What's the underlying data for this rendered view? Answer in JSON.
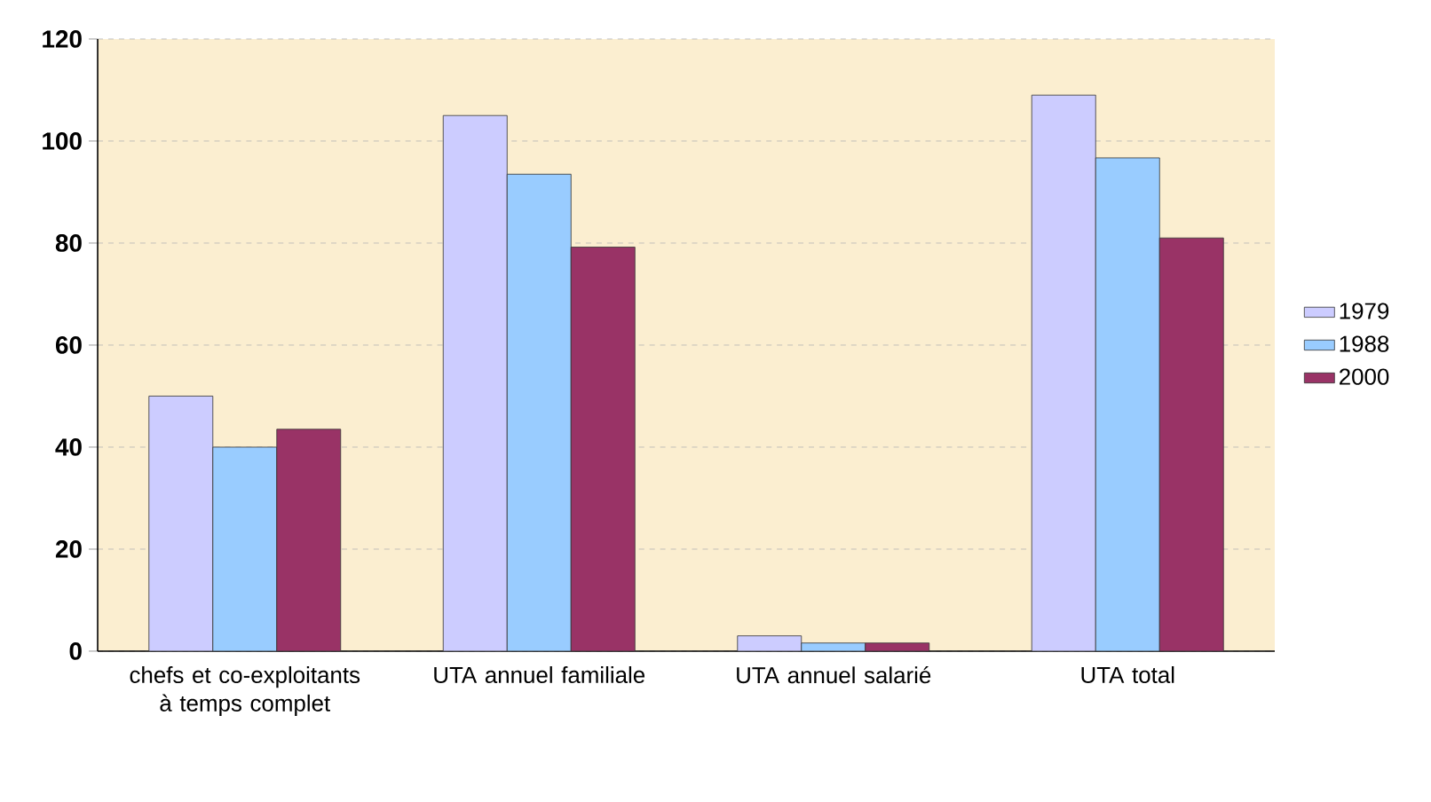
{
  "chart_data": {
    "type": "bar",
    "categories": [
      "chefs et co-exploitants à temps complet",
      "UTA annuel familiale",
      "UTA annuel salarié",
      "UTA total"
    ],
    "series": [
      {
        "name": "1979",
        "color": "#ccccff",
        "values": [
          50,
          105,
          3,
          109
        ]
      },
      {
        "name": "1988",
        "color": "#99ccff",
        "values": [
          40,
          93.5,
          1.6,
          96.7
        ]
      },
      {
        "name": "2000",
        "color": "#993366",
        "values": [
          43.5,
          79.2,
          1.6,
          81
        ]
      }
    ],
    "ylim": [
      0,
      120
    ],
    "yticks": [
      0,
      20,
      40,
      60,
      80,
      100,
      120
    ],
    "grid": "y",
    "legend": "right"
  }
}
